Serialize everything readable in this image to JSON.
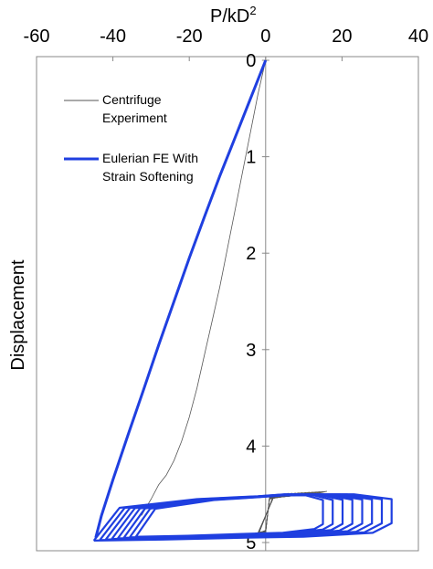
{
  "chart_data": {
    "type": "line",
    "x_title": "P/kD",
    "x_title_superscript": "2",
    "y_title": "Displacement",
    "xlim": [
      -60,
      40
    ],
    "ylim": [
      0,
      5
    ],
    "y_inverted": true,
    "x_axis_position": "top",
    "x_ticks": [
      "-60",
      "-40",
      "-20",
      "0",
      "20",
      "40"
    ],
    "y_ticks": [
      "0",
      "1",
      "2",
      "3",
      "4",
      "5"
    ],
    "grid": false,
    "legend_position": "top-left",
    "colors": {
      "centrifuge": "#555555",
      "eulerian": "#1f3fe0",
      "axis": "#888888"
    },
    "series": [
      {
        "name": "Centrifuge Experiment",
        "style": "thin-gray",
        "loading": {
          "x": [
            0,
            -2,
            -4,
            -6,
            -8,
            -10,
            -12,
            -14,
            -16,
            -18,
            -20,
            -22,
            -24,
            -26,
            -28,
            -30,
            -31.5,
            -32.5
          ],
          "y": [
            0,
            0.35,
            0.75,
            1.15,
            1.55,
            1.95,
            2.35,
            2.7,
            3.05,
            3.4,
            3.7,
            3.95,
            4.15,
            4.3,
            4.4,
            4.55,
            4.65,
            4.72
          ]
        },
        "cycles": {
          "count": 12,
          "x_min_start": -32,
          "x_min_end": -4,
          "x_max": 16,
          "y_top": 4.47,
          "y_bottom": 4.98
        }
      },
      {
        "name": "Eulerian FE With Strain Softening",
        "style": "thick-blue",
        "loading": {
          "x": [
            0,
            -4,
            -8,
            -12,
            -16,
            -20,
            -24,
            -28,
            -32,
            -36,
            -40,
            -43,
            -44.5
          ],
          "y": [
            0,
            0.4,
            0.8,
            1.2,
            1.62,
            2.05,
            2.5,
            2.95,
            3.42,
            3.88,
            4.35,
            4.72,
            4.95
          ]
        },
        "cycles": {
          "count": 8,
          "x_min_start": -45,
          "x_min_end": -34,
          "x_max_start": 33,
          "x_max_end": 15,
          "y_top": 4.5,
          "y_bottom": 4.98
        }
      }
    ]
  }
}
